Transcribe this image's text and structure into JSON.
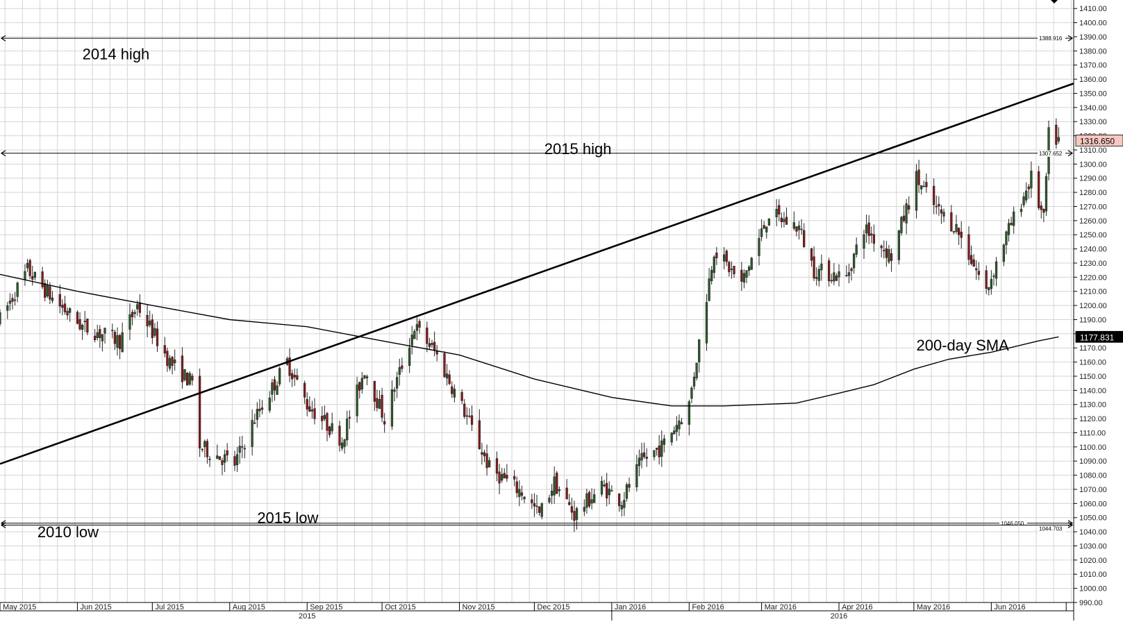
{
  "chart_data": {
    "type": "candlestick",
    "ylim": [
      990,
      1416
    ],
    "xlim": [
      "2015-05-01",
      "2016-07-04"
    ],
    "grid": true,
    "y_ticks": [
      1410,
      1400,
      1390,
      1380,
      1370,
      1360,
      1350,
      1340,
      1330,
      1320,
      1310,
      1300,
      1290,
      1280,
      1270,
      1260,
      1250,
      1240,
      1230,
      1220,
      1210,
      1200,
      1190,
      1180,
      1170,
      1160,
      1150,
      1140,
      1130,
      1120,
      1110,
      1100,
      1090,
      1080,
      1070,
      1060,
      1050,
      1040,
      1030,
      1020,
      1010,
      1000,
      990
    ],
    "month_ticks": [
      {
        "date": "2015-05-01",
        "label": "May 2015"
      },
      {
        "date": "2015-06-01",
        "label": "Jun 2015"
      },
      {
        "date": "2015-07-01",
        "label": "Jul 2015"
      },
      {
        "date": "2015-08-01",
        "label": "Aug 2015"
      },
      {
        "date": "2015-09-01",
        "label": "Sep 2015"
      },
      {
        "date": "2015-10-01",
        "label": "Oct 2015"
      },
      {
        "date": "2015-11-01",
        "label": "Nov 2015"
      },
      {
        "date": "2015-12-01",
        "label": "Dec 2015"
      },
      {
        "date": "2016-01-01",
        "label": "Jan 2016"
      },
      {
        "date": "2016-02-01",
        "label": "Feb 2016"
      },
      {
        "date": "2016-03-01",
        "label": "Mar 2016"
      },
      {
        "date": "2016-04-01",
        "label": "Apr 2016"
      },
      {
        "date": "2016-05-01",
        "label": "May 2016"
      },
      {
        "date": "2016-06-01",
        "label": "Jun 2016"
      },
      {
        "date": "2016-07-01",
        "label": ""
      }
    ],
    "year_labels": [
      {
        "date": "2015-09-01",
        "label": "2015"
      },
      {
        "date": "2016-04-01",
        "label": "2016"
      }
    ],
    "year_divider": "2016-01-01",
    "keyframes": [
      [
        "2015-05-01",
        1190
      ],
      [
        "2015-05-12",
        1225
      ],
      [
        "2015-05-22",
        1205
      ],
      [
        "2015-06-03",
        1185
      ],
      [
        "2015-06-18",
        1175
      ],
      [
        "2015-06-25",
        1200
      ],
      [
        "2015-07-08",
        1160
      ],
      [
        "2015-07-17",
        1145
      ],
      [
        "2015-07-20",
        1100
      ],
      [
        "2015-08-03",
        1088
      ],
      [
        "2015-08-11",
        1120
      ],
      [
        "2015-08-24",
        1160
      ],
      [
        "2015-09-01",
        1130
      ],
      [
        "2015-09-15",
        1105
      ],
      [
        "2015-09-24",
        1155
      ],
      [
        "2015-10-02",
        1120
      ],
      [
        "2015-10-14",
        1185
      ],
      [
        "2015-10-22",
        1168
      ],
      [
        "2015-11-03",
        1125
      ],
      [
        "2015-11-13",
        1085
      ],
      [
        "2015-11-26",
        1068
      ],
      [
        "2015-12-03",
        1052
      ],
      [
        "2015-12-09",
        1075
      ],
      [
        "2015-12-17",
        1052
      ],
      [
        "2015-12-28",
        1072
      ],
      [
        "2016-01-05",
        1062
      ],
      [
        "2016-01-13",
        1090
      ],
      [
        "2016-01-21",
        1100
      ],
      [
        "2016-02-01",
        1130
      ],
      [
        "2016-02-11",
        1240
      ],
      [
        "2016-02-22",
        1215
      ],
      [
        "2016-03-04",
        1265
      ],
      [
        "2016-03-16",
        1255
      ],
      [
        "2016-03-22",
        1225
      ],
      [
        "2016-04-04",
        1220
      ],
      [
        "2016-04-11",
        1255
      ],
      [
        "2016-04-22",
        1235
      ],
      [
        "2016-05-02",
        1290
      ],
      [
        "2016-05-10",
        1268
      ],
      [
        "2016-05-18",
        1255
      ],
      [
        "2016-05-30",
        1210
      ],
      [
        "2016-06-06",
        1245
      ],
      [
        "2016-06-17",
        1290
      ],
      [
        "2016-06-22",
        1260
      ],
      [
        "2016-06-24",
        1320
      ],
      [
        "2016-06-28",
        1316.65
      ]
    ],
    "sma_200": [
      [
        "2015-05-01",
        1222
      ],
      [
        "2015-06-01",
        1210
      ],
      [
        "2015-07-01",
        1200
      ],
      [
        "2015-08-01",
        1190
      ],
      [
        "2015-09-01",
        1185
      ],
      [
        "2015-10-01",
        1175
      ],
      [
        "2015-11-01",
        1165
      ],
      [
        "2015-12-01",
        1148
      ],
      [
        "2016-01-01",
        1135
      ],
      [
        "2016-01-25",
        1129
      ],
      [
        "2016-02-15",
        1129
      ],
      [
        "2016-03-15",
        1131
      ],
      [
        "2016-04-01",
        1138
      ],
      [
        "2016-04-15",
        1144
      ],
      [
        "2016-05-01",
        1155
      ],
      [
        "2016-05-15",
        1162
      ],
      [
        "2016-06-01",
        1167
      ],
      [
        "2016-06-20",
        1175
      ],
      [
        "2016-06-28",
        1177.831
      ]
    ],
    "trendline_up": {
      "start": [
        "2015-05-01",
        1088
      ],
      "end": [
        "2016-07-04",
        1357
      ]
    },
    "horizontal_levels": [
      {
        "name": "2014 high",
        "value": 1388.916,
        "value_label": "1388.916"
      },
      {
        "name": "2015 high",
        "value": 1307.652,
        "value_label": "1307.652"
      },
      {
        "name": "2015 low",
        "value": 1046.05,
        "value_label": "1046.050"
      },
      {
        "name": "2010 low",
        "value": 1044.703,
        "value_label": "1044.703"
      }
    ],
    "annotations": [
      {
        "text": "2014 high",
        "date": "2015-06-03",
        "value": 1378
      },
      {
        "text": "2015 high",
        "date": "2015-12-05",
        "value": 1311
      },
      {
        "text": "2015 low",
        "date": "2015-08-12",
        "value": 1050
      },
      {
        "text": "2010 low",
        "date": "2015-05-16",
        "value": 1040
      },
      {
        "text": "200-day SMA",
        "date": "2016-05-02",
        "value": 1172
      }
    ],
    "price_flags": [
      {
        "value": 1316.65,
        "label": "1316.650",
        "color": "#f6c8c0"
      },
      {
        "value": 1177.831,
        "label": "1177.831",
        "color": "#000000"
      }
    ],
    "colors": {
      "up": "#2e5b2b",
      "down": "#8b1a1a",
      "grid": "#d4d4d4",
      "line": "#000000"
    }
  }
}
